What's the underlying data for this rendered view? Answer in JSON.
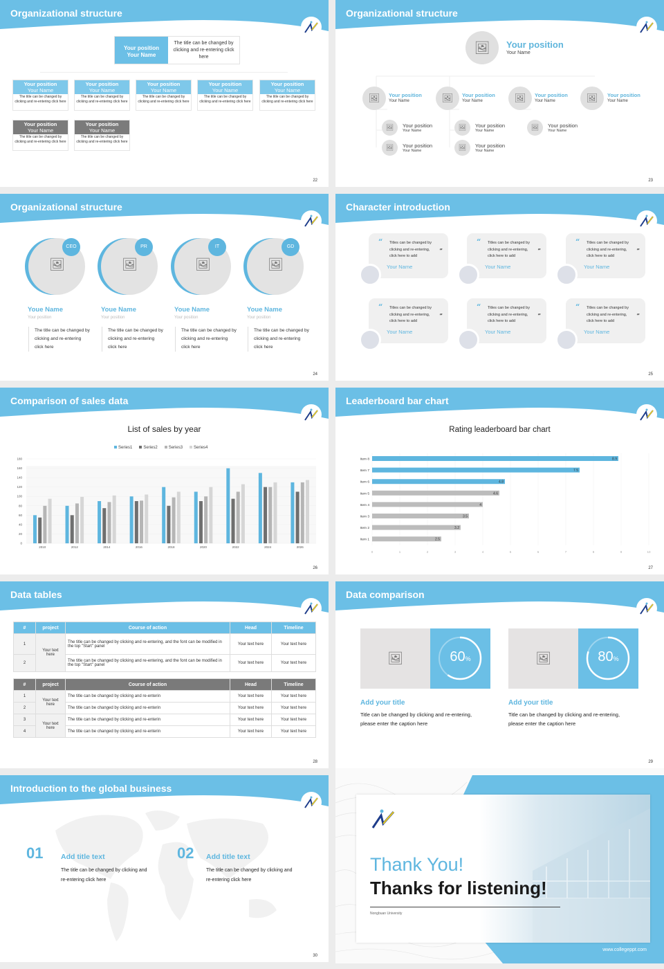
{
  "theme": {
    "accent": "#6bbfe6",
    "dark_gray": "#7a7a7a",
    "light_gray": "#e0e0e0"
  },
  "slides": [
    {
      "title": "Organizational structure",
      "page": "22",
      "top": {
        "position": "Your position",
        "name": "Your Name",
        "desc": "The title can be changed by clicking and re-entering click here"
      },
      "row1": [
        {
          "position": "Your position",
          "name": "Your Name",
          "desc": "The title can be changed by clicking and re-entering click here"
        },
        {
          "position": "Your position",
          "name": "Your Name",
          "desc": "The title can be changed by clicking and re-entering click here"
        },
        {
          "position": "Your position",
          "name": "Your Name",
          "desc": "The title can be changed by clicking and re-entering click here"
        },
        {
          "position": "Your position",
          "name": "Your Name",
          "desc": "The title can be changed by clicking and re-entering click here"
        },
        {
          "position": "Your position",
          "name": "Your Name",
          "desc": "The title can be changed by clicking and re-entering click here"
        }
      ],
      "row2": [
        {
          "position": "Your position",
          "name": "Your Name",
          "desc": "The title can be changed by clicking and re-entering click here"
        },
        {
          "position": "Your position",
          "name": "Your Name",
          "desc": "The title can be changed by clicking and re-entering click here"
        }
      ]
    },
    {
      "title": "Organizational structure",
      "page": "23",
      "top": {
        "position": "Your position",
        "name": "Your Name"
      },
      "level1": [
        {
          "position": "Your position",
          "name": "Your Name"
        },
        {
          "position": "Your position",
          "name": "Your Name"
        },
        {
          "position": "Your position",
          "name": "Your Name"
        },
        {
          "position": "Your position",
          "name": "Your Name"
        }
      ],
      "level2": [
        {
          "position": "Your position",
          "name": "Your Name"
        },
        {
          "position": "Your position",
          "name": "Your Name"
        },
        {
          "position": "Your position",
          "name": "Your Name"
        },
        {
          "position": "Your position",
          "name": "Your Name"
        },
        {
          "position": "Your position",
          "name": "Your Name"
        }
      ]
    },
    {
      "title": "Organizational structure",
      "page": "24",
      "people": [
        {
          "badge": "CEO",
          "name": "Youe Name",
          "position": "Your position",
          "desc": "The title can be changed by clicking and re-entering click here"
        },
        {
          "badge": "PR",
          "name": "Youe Name",
          "position": "Your position",
          "desc": "The title can be changed by clicking and re-entering click here"
        },
        {
          "badge": "IT",
          "name": "Youe Name",
          "position": "Your position",
          "desc": "The title can be changed by clicking and re-entering click here"
        },
        {
          "badge": "GD",
          "name": "Youe Name",
          "position": "Your position",
          "desc": "The title can be changed by clicking and re-entering click here"
        }
      ]
    },
    {
      "title": "Character introduction",
      "page": "25",
      "cards": [
        {
          "text": "Titles can be changed by clicking and re-entering, click here to add",
          "name": "Your Name"
        },
        {
          "text": "Titles can be changed by clicking and re-entering, click here to add",
          "name": "Your Name"
        },
        {
          "text": "Titles can be changed by clicking and re-entering, click here to add",
          "name": "Your Name"
        },
        {
          "text": "Titles can be changed by clicking and re-entering, click here to add",
          "name": "Your Name"
        },
        {
          "text": "Titles can be changed by clicking and re-entering, click here to add",
          "name": "Your Name"
        },
        {
          "text": "Titles can be changed by clicking and re-entering, click here to add",
          "name": "Your Name"
        }
      ],
      "quote_open": "“",
      "quote_close": "”"
    },
    {
      "title": "Comparison of sales data",
      "page": "26"
    },
    {
      "title": "Leaderboard bar chart",
      "page": "27"
    },
    {
      "title": "Data tables",
      "page": "28",
      "table1": {
        "headers": [
          "#",
          "project",
          "Course of action",
          "Head",
          "Timeline"
        ],
        "project": "Your text here",
        "rows": [
          {
            "n": "1",
            "action": "The title can be changed by clicking and re-entering, and the font can be modified in the top \"Start\" panel",
            "head": "Your text here",
            "timeline": "Your text here"
          },
          {
            "n": "2",
            "action": "The title can be changed by clicking and re-entering, and the font can be modified in the top \"Start\" panel",
            "head": "Your text here",
            "timeline": "Your text here"
          }
        ]
      },
      "table2": {
        "headers": [
          "#",
          "project",
          "Course of action",
          "Head",
          "Timeline"
        ],
        "project_a": "Your text here",
        "project_b": "Your text here",
        "rows": [
          {
            "n": "1",
            "action": "The title can be changed by clicking and re-enterin",
            "head": "Your text here",
            "timeline": "Your text here"
          },
          {
            "n": "2",
            "action": "The title can be changed by clicking and re-enterin",
            "head": "Your text here",
            "timeline": "Your text here"
          },
          {
            "n": "3",
            "action": "The title can be changed by clicking and re-enterin",
            "head": "Your text here",
            "timeline": "Your text here"
          },
          {
            "n": "4",
            "action": "The title can be changed by clicking and re-enterin",
            "head": "Your text here",
            "timeline": "Your text here"
          }
        ]
      }
    },
    {
      "title": "Data comparison",
      "page": "29",
      "items": [
        {
          "value": "60",
          "unit": "%",
          "percent": 60,
          "title": "Add your title",
          "desc": "Title can be changed by clicking and re-entering, please enter the caption here"
        },
        {
          "value": "80",
          "unit": "%",
          "percent": 80,
          "title": "Add your title",
          "desc": "Title can be changed by clicking and re-entering, please enter the caption here"
        }
      ]
    },
    {
      "title": "Introduction to the global business",
      "page": "30",
      "items": [
        {
          "num": "01",
          "title": "Add title text",
          "desc": "The title can be changed by clicking and re-entering click here"
        },
        {
          "num": "02",
          "title": "Add title text",
          "desc": "The title can be changed by clicking and re-entering click here"
        }
      ]
    },
    {
      "thank": "Thank You!",
      "thanks": "Thanks for listening!",
      "university": "Nongbuan University",
      "url": "www.collegeppt.com"
    }
  ],
  "chart_data": [
    {
      "type": "bar",
      "title": "List of sales by year",
      "xlabel": "",
      "ylabel": "",
      "categories": [
        "2010",
        "2012",
        "2014",
        "2016",
        "2018",
        "2020",
        "2022",
        "2024",
        "2026"
      ],
      "series": [
        {
          "name": "Series1",
          "color": "#5eb6df",
          "values": [
            60,
            80,
            90,
            100,
            120,
            110,
            160,
            150,
            130
          ]
        },
        {
          "name": "Series2",
          "color": "#6f6f6f",
          "values": [
            55,
            60,
            75,
            90,
            80,
            90,
            95,
            120,
            110
          ]
        },
        {
          "name": "Series3",
          "color": "#b5b5b5",
          "values": [
            80,
            85,
            88,
            91,
            98,
            100,
            110,
            120,
            130
          ]
        },
        {
          "name": "Series4",
          "color": "#d6d6d6",
          "values": [
            95,
            99,
            102,
            104,
            110,
            120,
            126,
            130,
            135
          ]
        }
      ],
      "ylim": [
        0,
        180
      ],
      "yticks": [
        0,
        20,
        40,
        60,
        80,
        100,
        120,
        140,
        160,
        180
      ],
      "legend_position": "top",
      "grid": true
    },
    {
      "type": "bar",
      "orientation": "horizontal",
      "title": "Rating leaderboard bar chart",
      "categories": [
        "Item 8",
        "Item 7",
        "Item 6",
        "Item 5",
        "Item 4",
        "Item 3",
        "Item 2",
        "Item 1"
      ],
      "values": [
        8.9,
        7.5,
        4.8,
        4.6,
        4,
        3.5,
        3.2,
        2.5
      ],
      "highlight": [
        true,
        true,
        true,
        false,
        false,
        false,
        false,
        false
      ],
      "xlim": [
        0,
        10
      ],
      "xticks": [
        0,
        1,
        2,
        3,
        4,
        5,
        6,
        7,
        8,
        9,
        10
      ],
      "grid": true
    }
  ]
}
